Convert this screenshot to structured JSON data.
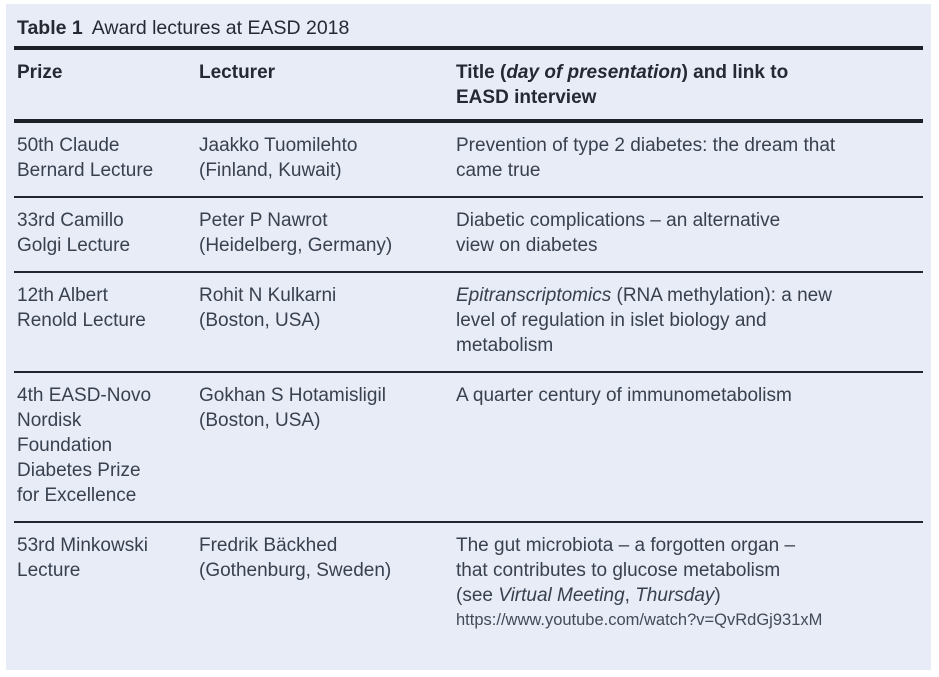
{
  "table": {
    "caption": {
      "label": "Table 1",
      "title": "Award lectures at EASD 2018"
    },
    "columns": [
      {
        "name": "prize",
        "segments": [
          {
            "t": "Prize"
          }
        ]
      },
      {
        "name": "lecturer",
        "segments": [
          {
            "t": "Lecturer"
          }
        ]
      },
      {
        "name": "title",
        "segments": [
          {
            "t": "Title ("
          },
          {
            "t": "day of presentation",
            "i": true
          },
          {
            "t": ") and link to\nEASD interview"
          }
        ]
      }
    ],
    "rows": [
      {
        "prize": [
          {
            "t": "50th Claude\nBernard Lecture"
          }
        ],
        "lecturer": [
          {
            "t": "Jaakko Tuomilehto\n(Finland, Kuwait)"
          }
        ],
        "title": [
          {
            "t": "Prevention of type 2 diabetes: the dream that\ncame true"
          }
        ]
      },
      {
        "prize": [
          {
            "t": "33rd Camillo\nGolgi Lecture"
          }
        ],
        "lecturer": [
          {
            "t": "Peter P Nawrot\n(Heidelberg, Germany)"
          }
        ],
        "title": [
          {
            "t": "Diabetic complications – an alternative\nview on diabetes"
          }
        ]
      },
      {
        "prize": [
          {
            "t": "12th Albert\nRenold Lecture"
          }
        ],
        "lecturer": [
          {
            "t": "Rohit N Kulkarni\n(Boston, USA)"
          }
        ],
        "title": [
          {
            "t": "Epitranscriptomics",
            "i": true
          },
          {
            "t": " (RNA methylation): a new\nlevel of regulation in islet biology and\nmetabolism"
          }
        ]
      },
      {
        "prize": [
          {
            "t": "4th EASD-Novo\nNordisk\nFoundation\nDiabetes Prize\nfor Excellence"
          }
        ],
        "lecturer": [
          {
            "t": "Gokhan S Hotamisligil\n(Boston, USA)"
          }
        ],
        "title": [
          {
            "t": "A quarter century of immunometabolism"
          }
        ]
      },
      {
        "prize": [
          {
            "t": "53rd Minkowski\nLecture"
          }
        ],
        "lecturer": [
          {
            "t": "Fredrik Bäckhed\n(Gothenburg, Sweden)"
          }
        ],
        "title": [
          {
            "t": "The gut microbiota – a forgotten organ –\nthat contributes to glucose metabolism\n(see "
          },
          {
            "t": "Virtual Meeting",
            "i": true
          },
          {
            "t": ", "
          },
          {
            "t": "Thursday",
            "i": true
          },
          {
            "t": ")"
          }
        ],
        "link": "https://www.youtube.com/watch?v=QvRdGj931xM"
      }
    ]
  },
  "colors": {
    "panel_bg": "#e7ecf7",
    "rule": "#1d2026",
    "header_text": "#262932",
    "body_text": "#39414f"
  }
}
